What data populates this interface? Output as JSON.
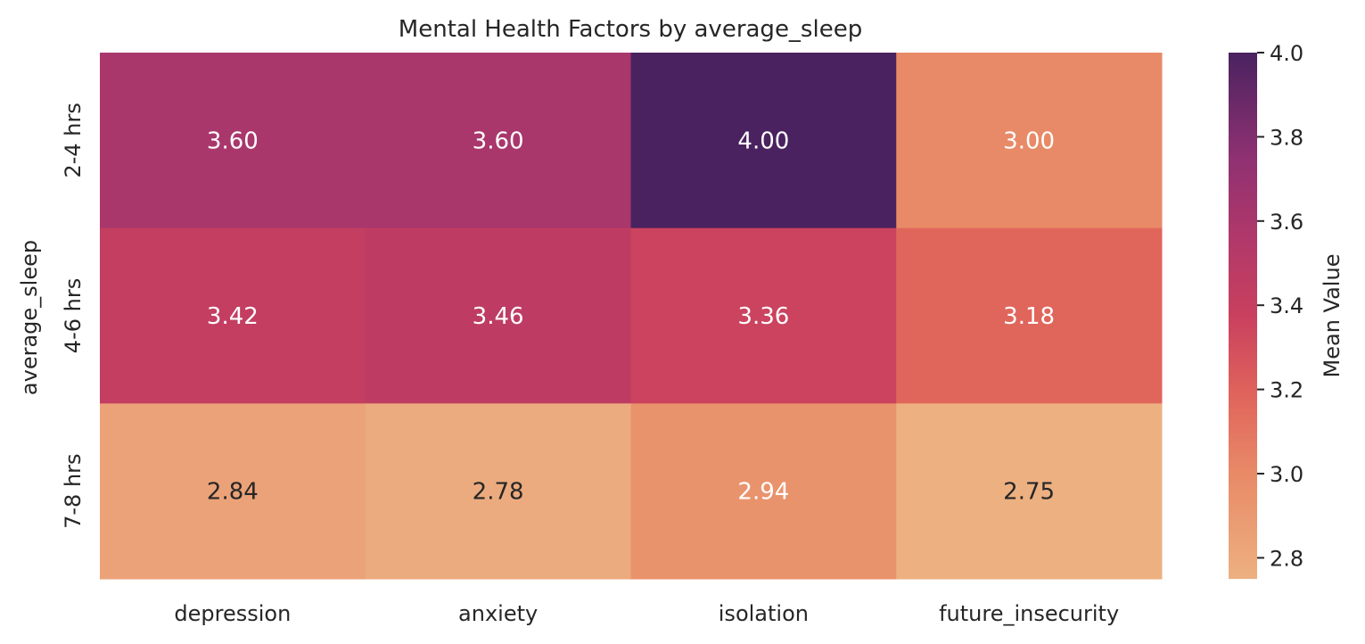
{
  "chart_data": {
    "type": "heatmap",
    "title": "Mental Health Factors by average_sleep",
    "xlabel": "",
    "ylabel": "average_sleep",
    "x_categories": [
      "depression",
      "anxiety",
      "isolation",
      "future_insecurity"
    ],
    "y_categories": [
      "2-4 hrs",
      "4-6 hrs",
      "7-8 hrs"
    ],
    "values": [
      [
        3.6,
        3.6,
        4.0,
        3.0
      ],
      [
        3.42,
        3.46,
        3.36,
        3.18
      ],
      [
        2.84,
        2.78,
        2.94,
        2.75
      ]
    ],
    "value_format": "2 decimals",
    "colormap": "flare",
    "vmin": 2.75,
    "vmax": 4.0,
    "colorbar": {
      "label": "Mean Value",
      "ticks": [
        2.8,
        3.0,
        3.2,
        3.4,
        3.6,
        3.8,
        4.0
      ],
      "tick_labels": [
        "2.8",
        "3.0",
        "3.2",
        "3.4",
        "3.6",
        "3.8",
        "4.0"
      ]
    }
  }
}
